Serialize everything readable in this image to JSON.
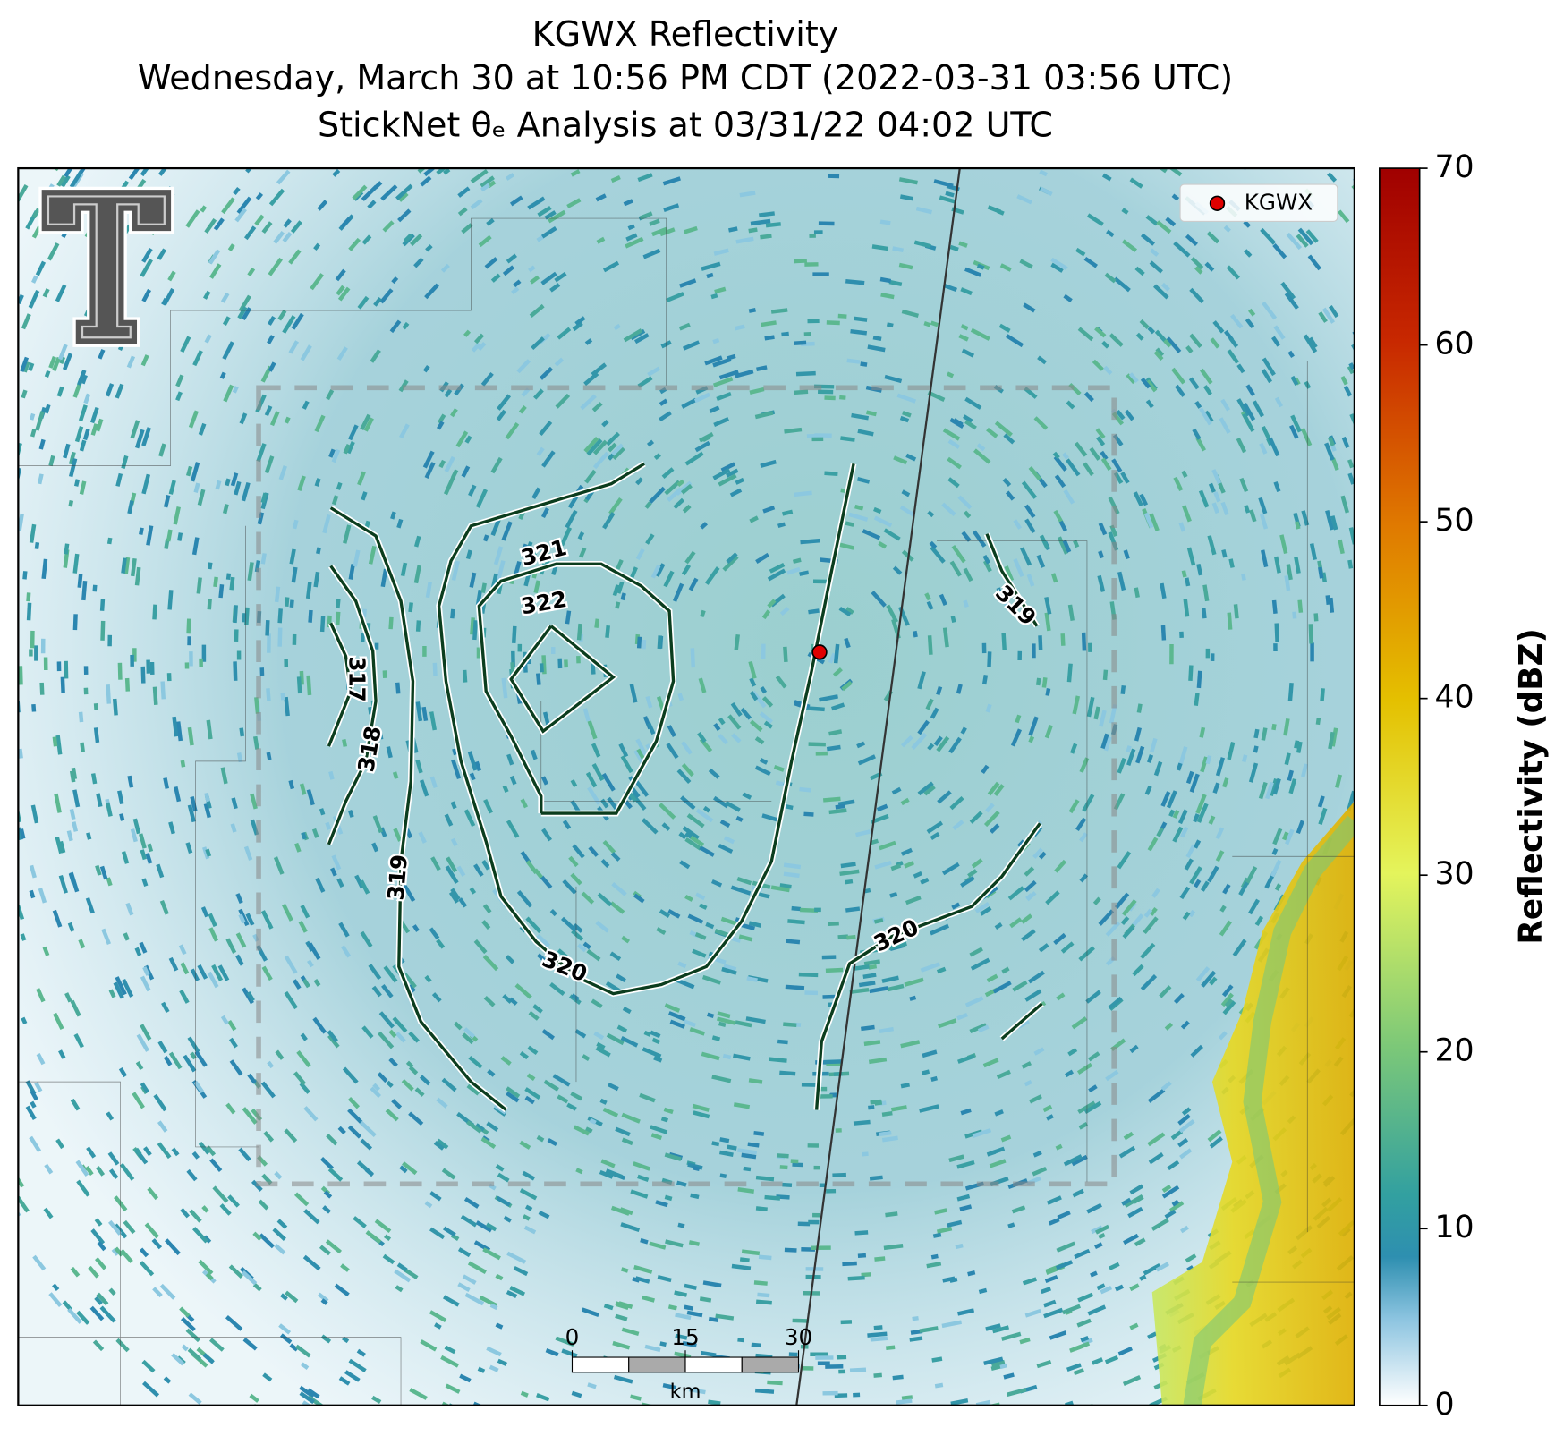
{
  "title_lines": [
    "KGWX Reflectivity",
    "Wednesday, March 30 at 10:56 PM CDT (2022-03-31 03:56 UTC)",
    "StickNet θₑ Analysis at 03/31/22 04:02 UTC"
  ],
  "legend": {
    "label": "KGWX"
  },
  "colorbar": {
    "label": "Reflectivity (dBZ)",
    "ylim": [
      0,
      70
    ],
    "yticks": [
      0,
      10,
      20,
      30,
      40,
      50,
      60,
      70
    ]
  },
  "contour_labels": [
    321,
    322,
    317,
    318,
    319,
    320,
    320,
    319
  ],
  "scale_bar": {
    "ticks": [
      0,
      15,
      30
    ],
    "unit": "km"
  }
}
